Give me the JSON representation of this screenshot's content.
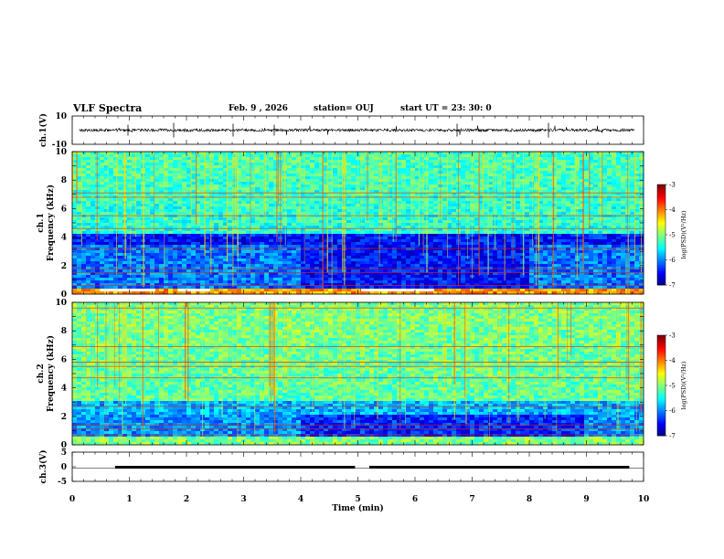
{
  "header": {
    "title": "VLF Spectra",
    "date": "Feb. 9 , 2026",
    "station": "station= OUJ",
    "start": "start UT = 23: 30: 0"
  },
  "chart_data": [
    {
      "type": "line",
      "panel": "ch1-waveform",
      "ylabel": "ch.1(V)",
      "ylim": [
        -10,
        10
      ],
      "yticks": [
        "10",
        "-10"
      ],
      "baseline": 0,
      "xlim": [
        0,
        10
      ]
    },
    {
      "type": "heatmap",
      "panel": "ch1-spectrogram",
      "ylabel": "ch.1 Frequency (kHz)",
      "ylim": [
        0,
        10
      ],
      "yticks": [
        "0",
        "2",
        "4",
        "6",
        "8",
        "10"
      ],
      "xlim": [
        0,
        10
      ],
      "colorbar": {
        "label": "log(PSD)(V²/Hz)",
        "range": [
          -7,
          -3
        ],
        "ticks": [
          "-3",
          "-4",
          "-5",
          "-6",
          "-7"
        ]
      }
    },
    {
      "type": "heatmap",
      "panel": "ch2-spectrogram",
      "ylabel": "ch.2 Frequency (kHz)",
      "ylim": [
        0,
        10
      ],
      "yticks": [
        "0",
        "2",
        "4",
        "6",
        "8",
        "10"
      ],
      "xlim": [
        0,
        10
      ],
      "colorbar": {
        "label": "log(PSD)(V²/Hz)",
        "range": [
          -7,
          -3
        ],
        "ticks": [
          "-3",
          "-4",
          "-5",
          "-6",
          "-7"
        ]
      }
    },
    {
      "type": "line",
      "panel": "ch3-signal",
      "ylabel": "ch.3(V)",
      "ylim": [
        -5,
        5
      ],
      "yticks": [
        "5",
        "0",
        "-5"
      ],
      "segments": [
        {
          "x": [
            0,
            0.75
          ],
          "y": 0
        },
        {
          "x": [
            0.75,
            4.95
          ],
          "y": 0.4
        },
        {
          "x": [
            4.95,
            5.2
          ],
          "y": 0
        },
        {
          "x": [
            5.2,
            9.75
          ],
          "y": 0.4
        },
        {
          "x": [
            9.75,
            10
          ],
          "y": 0
        }
      ],
      "xlabel": "Time (min)",
      "xlim": [
        0,
        10
      ],
      "xticks": [
        "0",
        "1",
        "2",
        "3",
        "4",
        "5",
        "6",
        "7",
        "8",
        "9",
        "10"
      ]
    }
  ]
}
